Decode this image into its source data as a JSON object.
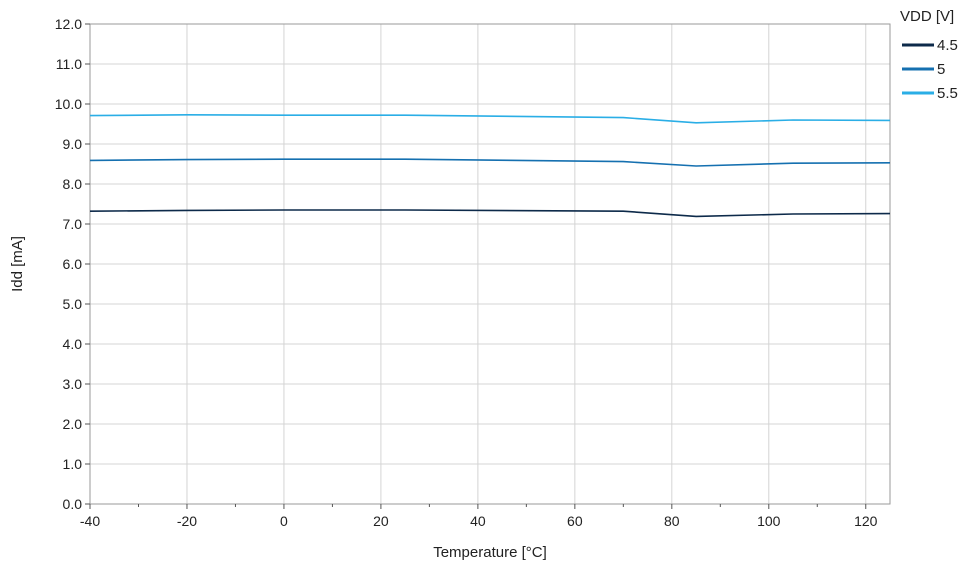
{
  "chart_data": {
    "type": "line",
    "xlabel": "Temperature [°C]",
    "ylabel": "Idd [mA]",
    "xlim": [
      -40,
      125
    ],
    "ylim": [
      0,
      12
    ],
    "x_ticks": [
      -40,
      -20,
      0,
      20,
      40,
      60,
      80,
      100,
      120
    ],
    "x_tick_labels": [
      "-40",
      "-20",
      "0",
      "20",
      "40",
      "60",
      "80",
      "100",
      "120"
    ],
    "y_ticks": [
      0,
      1,
      2,
      3,
      4,
      5,
      6,
      7,
      8,
      9,
      10,
      11,
      12
    ],
    "y_tick_labels": [
      "0.0",
      "1.0",
      "2.0",
      "3.0",
      "4.0",
      "5.0",
      "6.0",
      "7.0",
      "8.0",
      "9.0",
      "10.0",
      "11.0",
      "12.0"
    ],
    "grid": true,
    "legend": {
      "title": "VDD [V]",
      "placement": "top-right"
    },
    "x": [
      -40,
      -20,
      0,
      25,
      70,
      85,
      105,
      125
    ],
    "series": [
      {
        "name": "4.5",
        "color": "#0d2a4a",
        "values": [
          7.32,
          7.34,
          7.35,
          7.35,
          7.32,
          7.19,
          7.25,
          7.26
        ]
      },
      {
        "name": "5",
        "color": "#1570b0",
        "values": [
          8.59,
          8.61,
          8.62,
          8.62,
          8.56,
          8.45,
          8.52,
          8.53
        ]
      },
      {
        "name": "5.5",
        "color": "#2aaee6",
        "values": [
          9.71,
          9.73,
          9.72,
          9.72,
          9.66,
          9.53,
          9.6,
          9.59
        ]
      }
    ]
  }
}
